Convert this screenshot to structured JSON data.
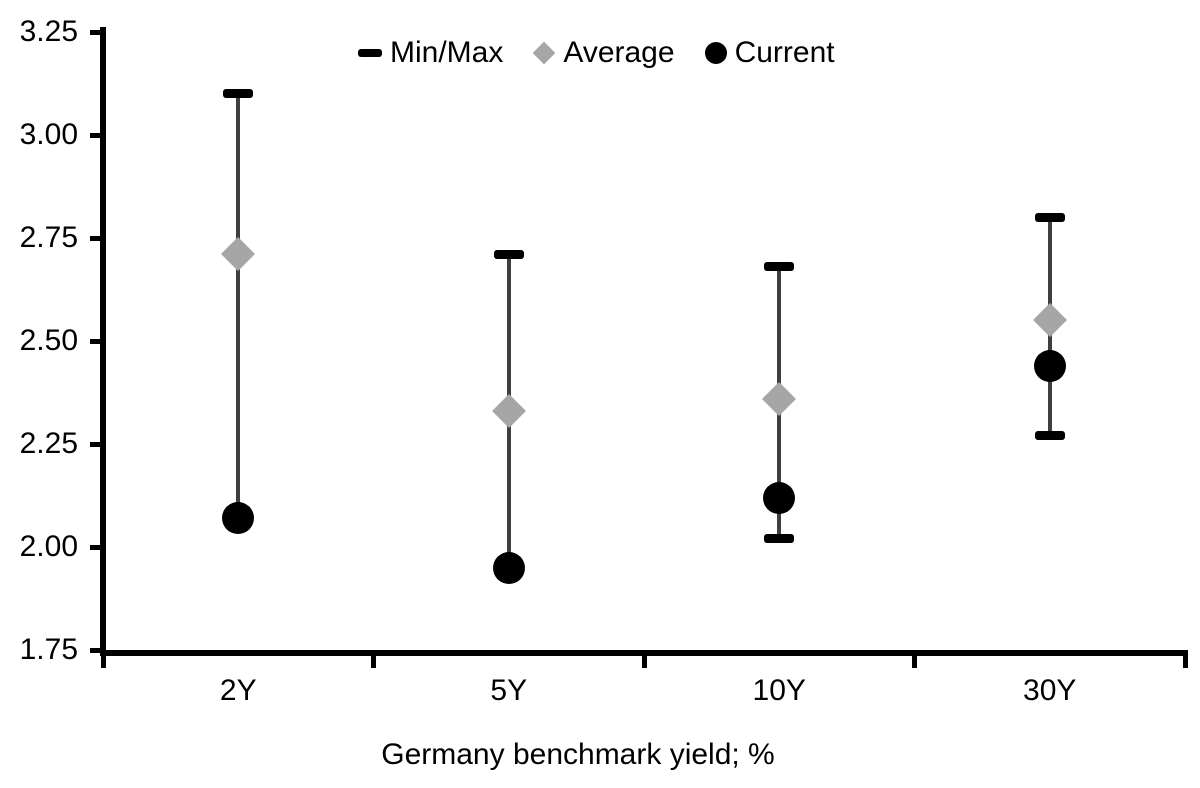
{
  "chart_data": {
    "type": "scatter",
    "title": "",
    "xlabel": "Germany benchmark yield; %",
    "ylabel": "",
    "ylim": [
      1.75,
      3.25
    ],
    "ytick_step": 0.25,
    "yticklabels": [
      "3.25",
      "3.00",
      "2.75",
      "2.50",
      "2.25",
      "2.00",
      "1.75"
    ],
    "categories": [
      "2Y",
      "5Y",
      "10Y",
      "30Y"
    ],
    "series": [
      {
        "name": "Min/Max",
        "marker": "dash",
        "color": "#000000",
        "max": [
          3.1,
          2.71,
          2.68,
          2.8
        ],
        "min": [
          2.07,
          1.95,
          2.02,
          2.27
        ]
      },
      {
        "name": "Average",
        "marker": "diamond",
        "color": "#a6a6a6",
        "values": [
          2.71,
          2.33,
          2.36,
          2.55
        ]
      },
      {
        "name": "Current",
        "marker": "circle",
        "color": "#000000",
        "values": [
          2.07,
          1.95,
          2.12,
          2.44
        ]
      }
    ],
    "legend_position": "top-center",
    "grid": false,
    "colors": {
      "minmax": "#000000",
      "average": "#a6a6a6",
      "current": "#000000",
      "error_line": "#3f3f3f",
      "axis": "#000000",
      "text": "#000000",
      "background": "#ffffff"
    }
  }
}
